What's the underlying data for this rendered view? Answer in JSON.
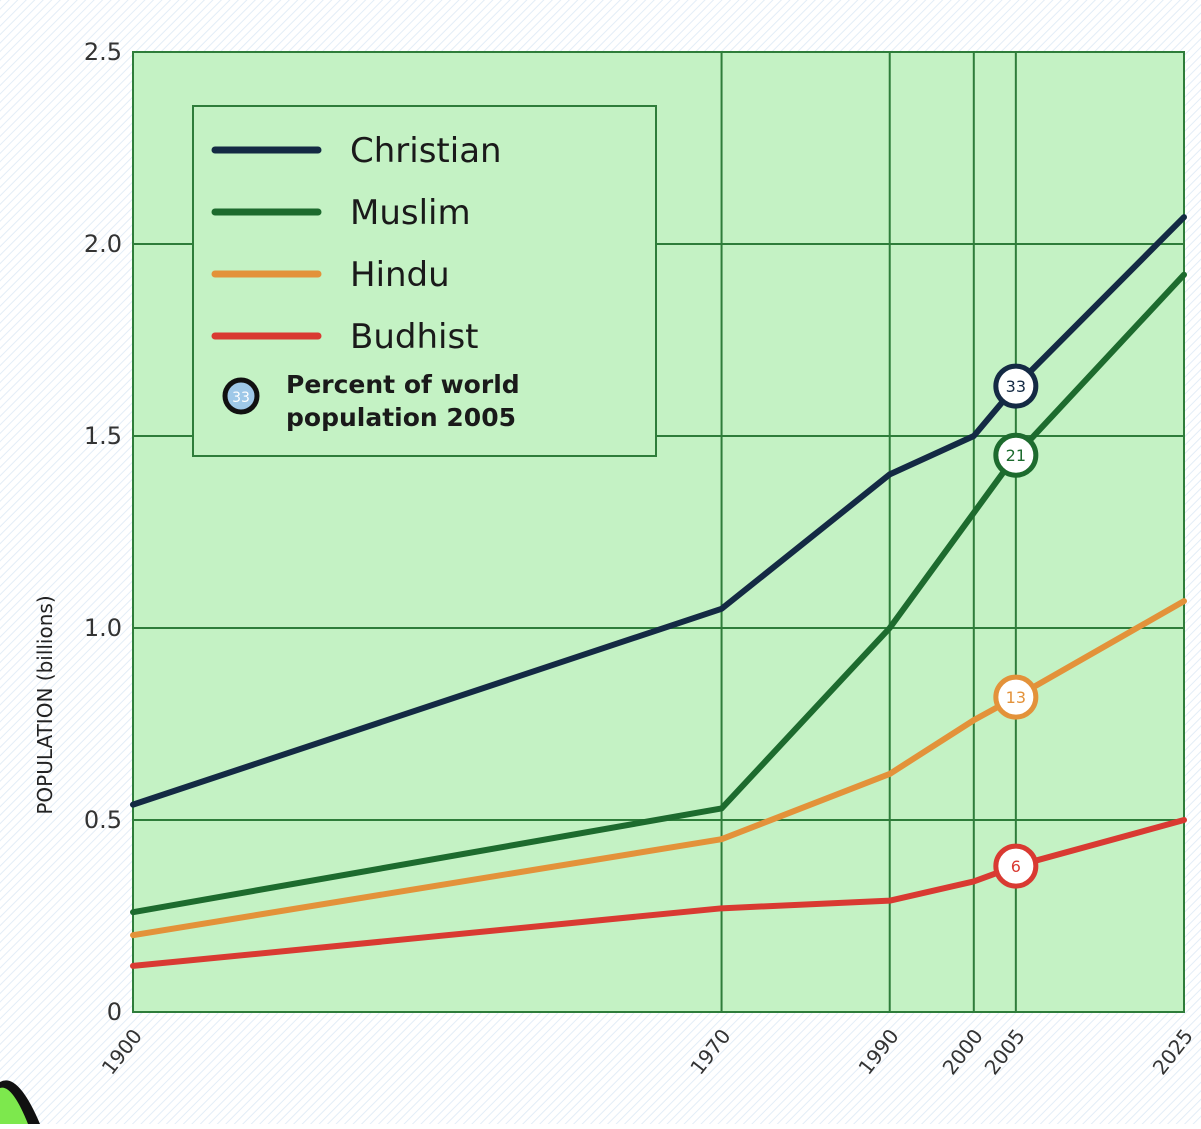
{
  "chart_data": {
    "type": "line",
    "title": "",
    "xlabel": "",
    "ylabel": "POPULATION (billions)",
    "x": [
      1900,
      1970,
      1990,
      2000,
      2005,
      2025
    ],
    "x_ticks": [
      "1900",
      "1970",
      "1990",
      "2000",
      "2005",
      "2025"
    ],
    "y_ticks": [
      "0",
      "0.5",
      "1.0",
      "1.5",
      "2.0",
      "2.5"
    ],
    "xlim": [
      1900,
      2025
    ],
    "ylim": [
      0,
      2.5
    ],
    "grid": true,
    "legend_position": "top-left",
    "series": [
      {
        "name": "Christian",
        "color": "#142a44",
        "values": [
          0.54,
          1.05,
          1.4,
          1.5,
          1.63,
          2.07
        ]
      },
      {
        "name": "Muslim",
        "color": "#1d6b2e",
        "values": [
          0.26,
          0.53,
          1.0,
          1.3,
          1.45,
          1.92
        ]
      },
      {
        "name": "Hindu",
        "color": "#e3923a",
        "values": [
          0.2,
          0.45,
          0.62,
          0.76,
          0.82,
          1.07
        ]
      },
      {
        "name": "Budhist",
        "color": "#d93a32",
        "values": [
          0.12,
          0.27,
          0.29,
          0.34,
          0.38,
          0.5
        ]
      }
    ],
    "markers": [
      {
        "series": "Christian",
        "x": 2005,
        "value": 1.63,
        "label": "33"
      },
      {
        "series": "Muslim",
        "x": 2005,
        "value": 1.45,
        "label": "21"
      },
      {
        "series": "Hindu",
        "x": 2005,
        "value": 0.82,
        "label": "13"
      },
      {
        "series": "Budhist",
        "x": 2005,
        "value": 0.38,
        "label": "6"
      }
    ],
    "legend_marker_note": "Percent of world population 2005",
    "legend_marker_symbol": "33"
  }
}
